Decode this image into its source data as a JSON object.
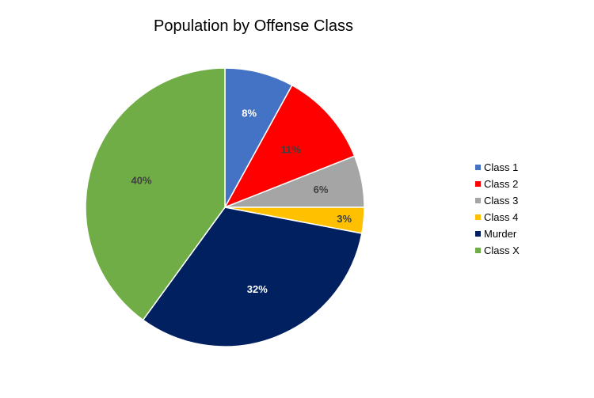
{
  "chart_data": {
    "type": "pie",
    "title": "Population by Offense Class",
    "categories": [
      "Class 1",
      "Class 2",
      "Class 3",
      "Class 4",
      "Murder",
      "Class X"
    ],
    "values": [
      8,
      11,
      6,
      3,
      32,
      40
    ],
    "labels": [
      "8%",
      "11%",
      "6%",
      "3%",
      "32%",
      "40%"
    ],
    "colors": [
      "#4472C4",
      "#FF0000",
      "#A5A5A5",
      "#FFC000",
      "#002060",
      "#70AD47"
    ],
    "label_colors": [
      "#ffffff",
      "#404040",
      "#404040",
      "#404040",
      "#ffffff",
      "#404040"
    ],
    "legend_position": "right",
    "start_angle": "12 o'clock",
    "direction": "clockwise"
  }
}
